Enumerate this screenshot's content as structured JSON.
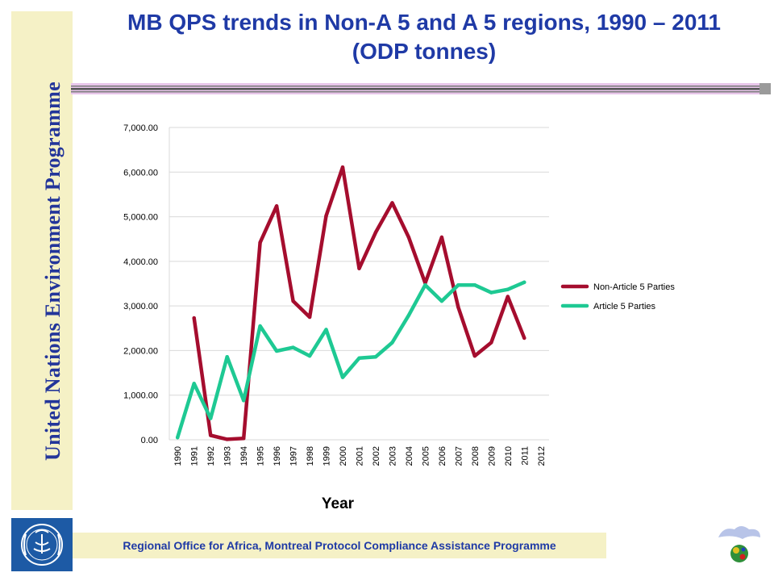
{
  "header": {
    "title_line1": "MB QPS trends in Non-A 5 and A 5 regions, 1990 – 2011",
    "title_line2": "(ODP tonnes)"
  },
  "sidebar": {
    "text": "United Nations Environment Programme"
  },
  "footer": {
    "text": "Regional Office for Africa, Montreal Protocol Compliance Assistance Programme"
  },
  "colors": {
    "title": "#1f3aa6",
    "sidebar_bg": "#f5f1c6",
    "non_article5": "#a50d2e",
    "article5": "#1ec993"
  },
  "icons": {
    "left_logo": "unep-logo-icon",
    "right_logo": "ozone-cloud-globe-icon"
  },
  "chart_data": {
    "type": "line",
    "x": [
      "1990",
      "1991",
      "1992",
      "1993",
      "1994",
      "1995",
      "1996",
      "1997",
      "1998",
      "1999",
      "2000",
      "2001",
      "2002",
      "2003",
      "2004",
      "2005",
      "2006",
      "2007",
      "2008",
      "2009",
      "2010",
      "2011",
      "2012"
    ],
    "xlabel": "Year",
    "ylabel": "",
    "ylim": [
      0,
      7000
    ],
    "yticks": [
      "0.00",
      "1,000.00",
      "2,000.00",
      "3,000.00",
      "4,000.00",
      "5,000.00",
      "6,000.00",
      "7,000.00"
    ],
    "grid": true,
    "legend_position": "right",
    "series": [
      {
        "name": "Non-Article 5 Parties",
        "color": "#a50d2e",
        "values": [
          null,
          2730,
          100,
          10,
          30,
          4420,
          5240,
          3110,
          2750,
          5020,
          6110,
          3840,
          4650,
          5310,
          4540,
          3510,
          4540,
          2970,
          1880,
          2180,
          3210,
          2280,
          null
        ]
      },
      {
        "name": "Article 5 Parties",
        "color": "#1ec993",
        "values": [
          50,
          1260,
          480,
          1860,
          880,
          2550,
          1990,
          2070,
          1880,
          2470,
          1400,
          1830,
          1860,
          2180,
          2790,
          3470,
          3110,
          3470,
          3470,
          3300,
          3370,
          3530,
          null
        ]
      }
    ]
  }
}
